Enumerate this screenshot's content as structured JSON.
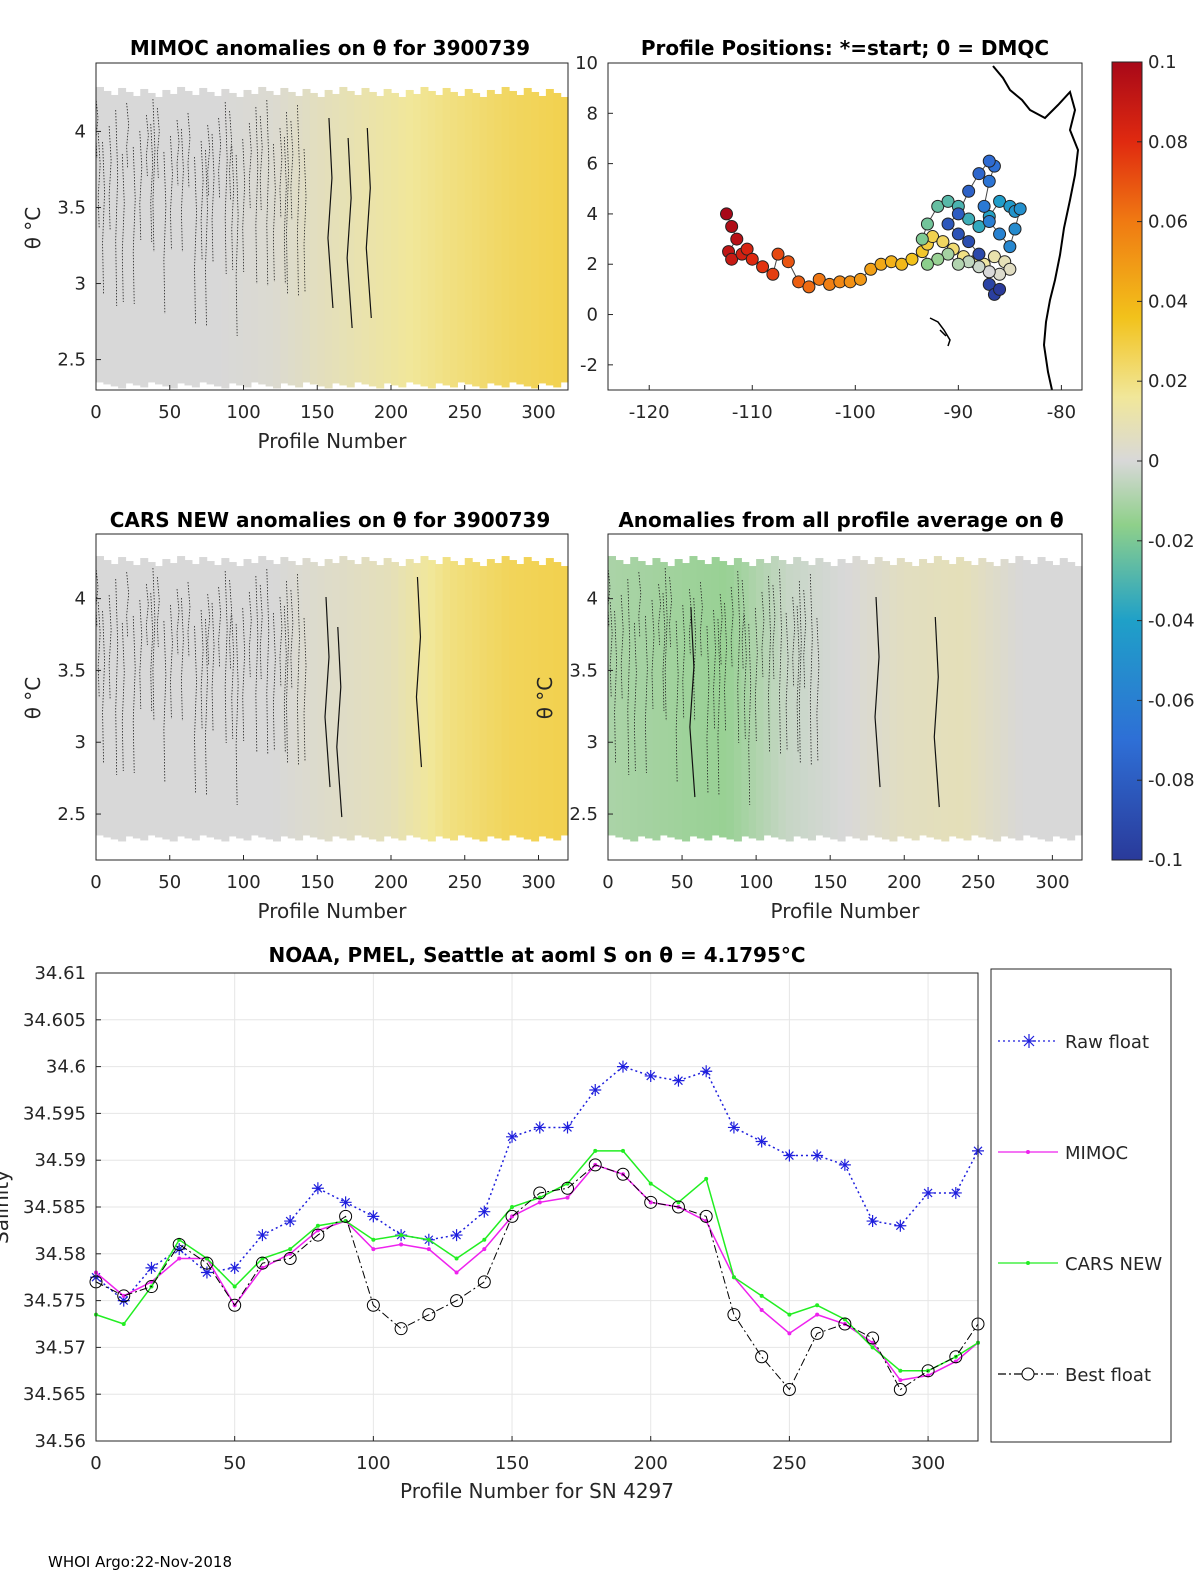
{
  "footer": "WHOI Argo:22-Nov-2018",
  "colors": {
    "raw": "#1f1fdd",
    "mimoc": "#ee22ee",
    "cars": "#22ee22",
    "best": "#000000",
    "grid": "#e6e6e6"
  },
  "chart_data": [
    {
      "type": "heatmap",
      "title": "MIMOC anomalies on θ  for 3900739",
      "xlabel": "Profile Number",
      "ylabel": "θ °C",
      "xlim": [
        0,
        320
      ],
      "ylim": [
        2.3,
        4.45
      ],
      "xticks": [
        0,
        50,
        100,
        150,
        200,
        250,
        300
      ],
      "yticks": [
        2.5,
        3,
        3.5,
        4
      ],
      "clim": [
        -0.1,
        0.1
      ],
      "x": [
        0,
        40,
        80,
        120,
        160,
        200,
        240,
        280,
        320
      ],
      "anomaly": [
        0.0,
        0.0,
        0.0,
        0.002,
        0.008,
        0.014,
        0.02,
        0.025,
        0.028
      ]
    },
    {
      "type": "scatter",
      "title": "Profile Positions: *=start; 0 = DMQC",
      "xlim": [
        -124,
        -78
      ],
      "ylim": [
        -3,
        10
      ],
      "xticks": [
        -120,
        -110,
        -100,
        -90,
        -80
      ],
      "yticks": [
        -2,
        0,
        2,
        4,
        6,
        8,
        10
      ],
      "colorbar_ticks": [
        "0.1",
        "0.08",
        "0.06",
        "0.04",
        "0.02",
        "0",
        "-0.02",
        "-0.04",
        "-0.06",
        "-0.08",
        "-0.1"
      ],
      "track_lon": [
        -112.5,
        -112,
        -111.5,
        -112.3,
        -112,
        -111,
        -110.5,
        -110,
        -109,
        -108,
        -107.5,
        -106.5,
        -105.5,
        -104.5,
        -103.5,
        -102.5,
        -101.5,
        -100.5,
        -99.5,
        -98.5,
        -97.5,
        -96.5,
        -95.5,
        -94.5,
        -93.5,
        -93,
        -92.5,
        -91.5,
        -90.5,
        -89.5,
        -88.5,
        -87.5,
        -86.5,
        -85.5,
        -85,
        -86,
        -87,
        -88,
        -89,
        -90,
        -91,
        -92,
        -93,
        -93.5,
        -93,
        -92,
        -91,
        -90,
        -89,
        -88,
        -87,
        -86,
        -85,
        -84.5,
        -84,
        -84.5,
        -85,
        -86,
        -87,
        -87.5,
        -87,
        -86.5,
        -87,
        -88,
        -89,
        -90,
        -91,
        -90,
        -89,
        -88,
        -87,
        -86.5,
        -86
      ],
      "track_lat": [
        4,
        3.5,
        3,
        2.5,
        2.2,
        2.4,
        2.6,
        2.2,
        1.9,
        1.6,
        2.4,
        2.1,
        1.3,
        1.1,
        1.4,
        1.2,
        1.3,
        1.3,
        1.4,
        1.8,
        2.0,
        2.1,
        2.0,
        2.2,
        2.5,
        2.8,
        3.1,
        2.9,
        2.6,
        2.3,
        2.1,
        2.0,
        2.3,
        2.1,
        1.8,
        1.6,
        1.7,
        1.9,
        2.1,
        2.0,
        2.4,
        2.2,
        2.0,
        3.0,
        3.6,
        4.3,
        4.5,
        4.3,
        3.8,
        3.5,
        3.9,
        4.5,
        4.3,
        4.1,
        4.2,
        3.4,
        2.7,
        3.2,
        3.7,
        4.3,
        5.3,
        5.9,
        6.1,
        5.6,
        4.9,
        4.0,
        3.6,
        3.2,
        2.9,
        2.4,
        1.2,
        0.8,
        1.0
      ]
    },
    {
      "type": "heatmap",
      "title": "CARS NEW anomalies on θ for 3900739",
      "xlabel": "Profile Number",
      "ylabel": "θ °C",
      "xlim": [
        0,
        320
      ],
      "ylim": [
        2.18,
        4.45
      ],
      "xticks": [
        0,
        50,
        100,
        150,
        200,
        250,
        300
      ],
      "yticks": [
        2.5,
        3,
        3.5,
        4
      ],
      "x": [
        0,
        40,
        80,
        120,
        160,
        200,
        240,
        280,
        320
      ],
      "anomaly": [
        0.0,
        0.0,
        0.0,
        0.0,
        0.004,
        0.008,
        0.02,
        0.026,
        0.028
      ]
    },
    {
      "type": "heatmap",
      "title": "Anomalies from all profile average on θ",
      "xlabel": "Profile Number",
      "ylabel": "θ °C",
      "xlim": [
        0,
        320
      ],
      "ylim": [
        2.18,
        4.45
      ],
      "xticks": [
        0,
        50,
        100,
        150,
        200,
        250,
        300
      ],
      "yticks": [
        2.5,
        3,
        3.5,
        4
      ],
      "x": [
        0,
        40,
        80,
        120,
        160,
        200,
        240,
        280,
        320
      ],
      "anomaly": [
        -0.01,
        -0.012,
        -0.014,
        -0.004,
        0.0,
        0.006,
        0.008,
        0.0,
        0.0
      ]
    },
    {
      "type": "line",
      "title": "NOAA, PMEL, Seattle at aoml S on θ = 4.1795°C",
      "xlabel": "Profile Number for SN 4297",
      "ylabel": "Salinity",
      "xlim": [
        0,
        318
      ],
      "ylim": [
        34.56,
        34.61
      ],
      "xticks": [
        0,
        50,
        100,
        150,
        200,
        250,
        300
      ],
      "yticks": [
        "34.56",
        "34.565",
        "34.57",
        "34.575",
        "34.58",
        "34.585",
        "34.59",
        "34.595",
        "34.6",
        "34.605",
        "34.61"
      ],
      "x": [
        0,
        10,
        20,
        30,
        40,
        50,
        60,
        70,
        80,
        90,
        100,
        110,
        120,
        130,
        140,
        150,
        160,
        170,
        180,
        190,
        200,
        210,
        220,
        230,
        240,
        250,
        260,
        270,
        280,
        290,
        300,
        310,
        318
      ],
      "series": [
        {
          "name": "Raw float",
          "values": [
            34.5775,
            34.575,
            34.5785,
            34.5805,
            34.578,
            34.5785,
            34.582,
            34.5835,
            34.587,
            34.5855,
            34.584,
            34.582,
            34.5815,
            34.582,
            34.5845,
            34.5925,
            34.5935,
            34.5935,
            34.5975,
            34.6,
            34.599,
            34.5985,
            34.5995,
            34.5935,
            34.592,
            34.5905,
            34.5905,
            34.5895,
            34.5835,
            34.583,
            34.5865,
            34.5865,
            34.591
          ]
        },
        {
          "name": "MIMOC",
          "values": [
            34.578,
            34.5755,
            34.577,
            34.5795,
            34.5795,
            34.5745,
            34.5785,
            34.58,
            34.5825,
            34.5835,
            34.5805,
            34.581,
            34.5805,
            34.578,
            34.5805,
            34.584,
            34.5855,
            34.586,
            34.5895,
            34.5885,
            34.5855,
            34.585,
            34.5835,
            34.5775,
            34.574,
            34.5715,
            34.5735,
            34.5725,
            34.5705,
            34.5665,
            34.567,
            34.5685,
            34.5705
          ]
        },
        {
          "name": "CARS NEW",
          "values": [
            34.5735,
            34.5725,
            34.5765,
            34.5815,
            34.5795,
            34.5765,
            34.5795,
            34.5805,
            34.583,
            34.5835,
            34.5815,
            34.582,
            34.5815,
            34.5795,
            34.5815,
            34.585,
            34.586,
            34.5875,
            34.591,
            34.591,
            34.5875,
            34.5855,
            34.588,
            34.5775,
            34.5755,
            34.5735,
            34.5745,
            34.573,
            34.57,
            34.5675,
            34.5675,
            34.569,
            34.5705
          ]
        },
        {
          "name": "Best float",
          "values": [
            34.577,
            34.5755,
            34.5765,
            34.581,
            34.579,
            34.5745,
            34.579,
            34.5795,
            34.582,
            34.584,
            34.5745,
            34.572,
            34.5735,
            34.575,
            34.577,
            34.584,
            34.5865,
            34.587,
            34.5895,
            34.5885,
            34.5855,
            34.585,
            34.584,
            34.5735,
            34.569,
            34.5655,
            34.5715,
            34.5725,
            34.571,
            34.5655,
            34.5675,
            34.569,
            34.5725
          ]
        }
      ]
    }
  ]
}
